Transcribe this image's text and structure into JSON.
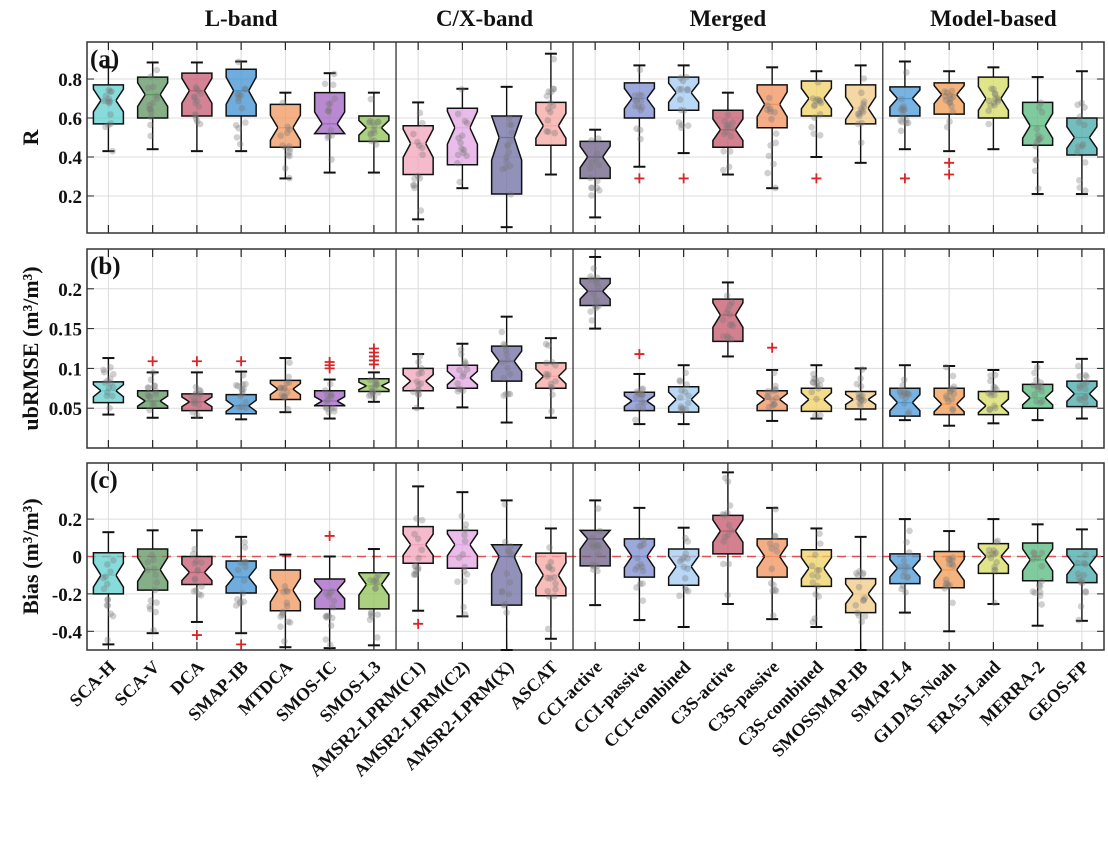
{
  "chart_data": {
    "type": "box",
    "groups": [
      {
        "name": "L-band",
        "count": 7
      },
      {
        "name": "C/X-band",
        "count": 4
      },
      {
        "name": "Merged",
        "count": 7
      },
      {
        "name": "Model-based",
        "count": 5
      }
    ],
    "categories": [
      "SCA-H",
      "SCA-V",
      "DCA",
      "SMAP-IB",
      "MTDCA",
      "SMOS-IC",
      "SMOS-L3",
      "AMSR2-LPRM(C1)",
      "AMSR2-LPRM(C2)",
      "AMSR2-LPRM(X)",
      "ASCAT",
      "CCI-active",
      "CCI-passive",
      "CCI-combined",
      "C3S-active",
      "C3S-passive",
      "C3S-combined",
      "SMOSSMAP-IB",
      "SMAP-L4",
      "GLDAS-Noah",
      "ERA5-Land",
      "MERRA-2",
      "GEOS-FP"
    ],
    "colors": [
      "#5fcfcf",
      "#5d9460",
      "#c55a72",
      "#3e92d2",
      "#f0975e",
      "#a263c2",
      "#8fc255",
      "#f2a3bb",
      "#e3a6e3",
      "#6d6ca3",
      "#f5a6a2",
      "#6c5d84",
      "#7c8bd2",
      "#a0cbf1",
      "#c4556a",
      "#f1925e",
      "#f0d263",
      "#f0c984",
      "#4b9ad8",
      "#f29a52",
      "#d7dc62",
      "#55ba7c",
      "#44aaa9"
    ],
    "outlier_color": "#d62728",
    "panels": [
      {
        "label": "(a)",
        "ylabel": "R",
        "ylim": [
          0.01,
          0.99
        ],
        "yticks": [
          0.2,
          0.4,
          0.6,
          0.8
        ],
        "ytick_labels": [
          "0.2",
          "0.4",
          "0.6",
          "0.8"
        ],
        "boxes": [
          [
            0.43,
            0.57,
            0.69,
            0.77,
            0.86
          ],
          [
            0.44,
            0.6,
            0.72,
            0.81,
            0.885
          ],
          [
            0.43,
            0.61,
            0.74,
            0.83,
            0.885
          ],
          [
            0.43,
            0.61,
            0.74,
            0.85,
            0.89
          ],
          [
            0.29,
            0.45,
            0.55,
            0.67,
            0.73
          ],
          [
            0.32,
            0.52,
            0.57,
            0.73,
            0.83
          ],
          [
            0.32,
            0.48,
            0.55,
            0.61,
            0.73
          ],
          [
            0.08,
            0.31,
            0.47,
            0.56,
            0.68
          ],
          [
            0.24,
            0.36,
            0.55,
            0.65,
            0.75
          ],
          [
            0.04,
            0.21,
            0.5,
            0.61,
            0.76
          ],
          [
            0.31,
            0.46,
            0.56,
            0.68,
            0.93
          ],
          [
            0.09,
            0.29,
            0.4,
            0.48,
            0.54
          ],
          [
            0.35,
            0.6,
            0.7,
            0.78,
            0.87
          ],
          [
            0.42,
            0.64,
            0.73,
            0.81,
            0.87
          ],
          [
            0.31,
            0.45,
            0.54,
            0.64,
            0.73
          ],
          [
            0.24,
            0.55,
            0.67,
            0.77,
            0.86
          ],
          [
            0.4,
            0.61,
            0.7,
            0.79,
            0.84
          ],
          [
            0.37,
            0.57,
            0.65,
            0.77,
            0.87
          ],
          [
            0.44,
            0.61,
            0.7,
            0.76,
            0.89
          ],
          [
            0.43,
            0.62,
            0.72,
            0.78,
            0.84
          ],
          [
            0.44,
            0.6,
            0.7,
            0.81,
            0.86
          ],
          [
            0.21,
            0.46,
            0.56,
            0.68,
            0.81
          ],
          [
            0.21,
            0.41,
            0.5,
            0.6,
            0.84
          ]
        ],
        "outliers": [
          [],
          [],
          [],
          [],
          [],
          [],
          [],
          [],
          [],
          [],
          [],
          [],
          [
            0.29
          ],
          [
            0.29
          ],
          [],
          [],
          [
            0.29
          ],
          [],
          [
            0.29
          ],
          [
            0.37,
            0.31
          ],
          [],
          [],
          []
        ],
        "ref_line": null
      },
      {
        "label": "(b)",
        "ylabel": "ubRMSE (m³/m³)",
        "ylim": [
          0.0,
          0.25
        ],
        "yticks": [
          0.05,
          0.1,
          0.15,
          0.2
        ],
        "ytick_labels": [
          "0.05",
          "0.1",
          "0.15",
          "0.2"
        ],
        "boxes": [
          [
            0.042,
            0.057,
            0.072,
            0.083,
            0.113
          ],
          [
            0.038,
            0.05,
            0.059,
            0.072,
            0.095
          ],
          [
            0.038,
            0.047,
            0.058,
            0.068,
            0.095
          ],
          [
            0.036,
            0.043,
            0.053,
            0.067,
            0.096
          ],
          [
            0.045,
            0.061,
            0.074,
            0.085,
            0.113
          ],
          [
            0.037,
            0.053,
            0.059,
            0.072,
            0.086
          ],
          [
            0.058,
            0.071,
            0.078,
            0.087,
            0.095
          ],
          [
            0.05,
            0.072,
            0.084,
            0.1,
            0.118
          ],
          [
            0.051,
            0.075,
            0.088,
            0.104,
            0.131
          ],
          [
            0.032,
            0.084,
            0.109,
            0.128,
            0.165
          ],
          [
            0.038,
            0.075,
            0.09,
            0.107,
            0.138
          ],
          [
            0.15,
            0.179,
            0.197,
            0.213,
            0.24
          ],
          [
            0.03,
            0.047,
            0.059,
            0.07,
            0.093
          ],
          [
            0.03,
            0.045,
            0.061,
            0.077,
            0.104
          ],
          [
            0.115,
            0.134,
            0.167,
            0.187,
            0.208
          ],
          [
            0.034,
            0.047,
            0.061,
            0.072,
            0.098
          ],
          [
            0.037,
            0.046,
            0.061,
            0.075,
            0.104
          ],
          [
            0.036,
            0.049,
            0.061,
            0.071,
            0.1
          ],
          [
            0.035,
            0.04,
            0.057,
            0.075,
            0.104
          ],
          [
            0.028,
            0.042,
            0.055,
            0.075,
            0.103
          ],
          [
            0.031,
            0.042,
            0.053,
            0.071,
            0.098
          ],
          [
            0.035,
            0.05,
            0.063,
            0.08,
            0.108
          ],
          [
            0.037,
            0.052,
            0.068,
            0.084,
            0.112
          ]
        ],
        "outliers": [
          [],
          [
            0.109
          ],
          [
            0.109
          ],
          [
            0.109
          ],
          [],
          [
            0.1,
            0.104,
            0.108
          ],
          [
            0.105,
            0.11,
            0.115,
            0.12,
            0.125
          ],
          [],
          [],
          [],
          [],
          [],
          [
            0.118
          ],
          [],
          [],
          [
            0.126
          ],
          [],
          [],
          [],
          [],
          [],
          [],
          []
        ],
        "ref_line": null
      },
      {
        "label": "(c)",
        "ylabel": "Bias (m³/m³)",
        "ylim": [
          -0.5,
          0.5
        ],
        "yticks": [
          -0.4,
          -0.2,
          0,
          0.2
        ],
        "ytick_labels": [
          "-0.4",
          "-0.2",
          "0",
          "0.2"
        ],
        "boxes": [
          [
            -0.47,
            -0.2,
            -0.1,
            0.02,
            0.13
          ],
          [
            -0.41,
            -0.18,
            -0.07,
            0.04,
            0.14
          ],
          [
            -0.35,
            -0.15,
            -0.085,
            0.0,
            0.14
          ],
          [
            -0.41,
            -0.195,
            -0.11,
            -0.024,
            0.105
          ],
          [
            -0.485,
            -0.29,
            -0.18,
            -0.072,
            0.01
          ],
          [
            -0.49,
            -0.28,
            -0.18,
            -0.12,
            0.0
          ],
          [
            -0.475,
            -0.28,
            -0.15,
            -0.087,
            0.04
          ],
          [
            -0.29,
            -0.036,
            0.063,
            0.16,
            0.375
          ],
          [
            -0.32,
            -0.063,
            0.063,
            0.14,
            0.344
          ],
          [
            -0.5,
            -0.26,
            0.0,
            0.063,
            0.3
          ],
          [
            -0.44,
            -0.21,
            -0.1,
            0.018,
            0.15
          ],
          [
            -0.26,
            -0.05,
            0.094,
            0.14,
            0.3
          ],
          [
            -0.34,
            -0.11,
            0.0,
            0.094,
            0.26
          ],
          [
            -0.377,
            -0.154,
            -0.054,
            0.04,
            0.154
          ],
          [
            -0.254,
            0.014,
            0.136,
            0.22,
            0.45
          ],
          [
            -0.335,
            -0.11,
            0.0,
            0.094,
            0.26
          ],
          [
            -0.377,
            -0.16,
            -0.063,
            0.036,
            0.15
          ],
          [
            -0.5,
            -0.3,
            -0.2,
            -0.118,
            0.105
          ],
          [
            -0.3,
            -0.145,
            -0.063,
            0.014,
            0.2
          ],
          [
            -0.4,
            -0.167,
            -0.072,
            0.027,
            0.136
          ],
          [
            -0.254,
            -0.09,
            0.0,
            0.069,
            0.2
          ],
          [
            -0.37,
            -0.13,
            -0.018,
            0.072,
            0.172
          ],
          [
            -0.344,
            -0.14,
            -0.045,
            0.04,
            0.145
          ]
        ],
        "outliers": [
          [],
          [],
          [
            -0.42
          ],
          [
            -0.47
          ],
          [],
          [
            0.11
          ],
          [],
          [
            -0.36
          ],
          [],
          [],
          [],
          [],
          [],
          [],
          [],
          [],
          [],
          [],
          [],
          [],
          [],
          [],
          []
        ],
        "ref_line": {
          "value": 0,
          "color": "#e05050"
        }
      }
    ],
    "grid": true
  }
}
